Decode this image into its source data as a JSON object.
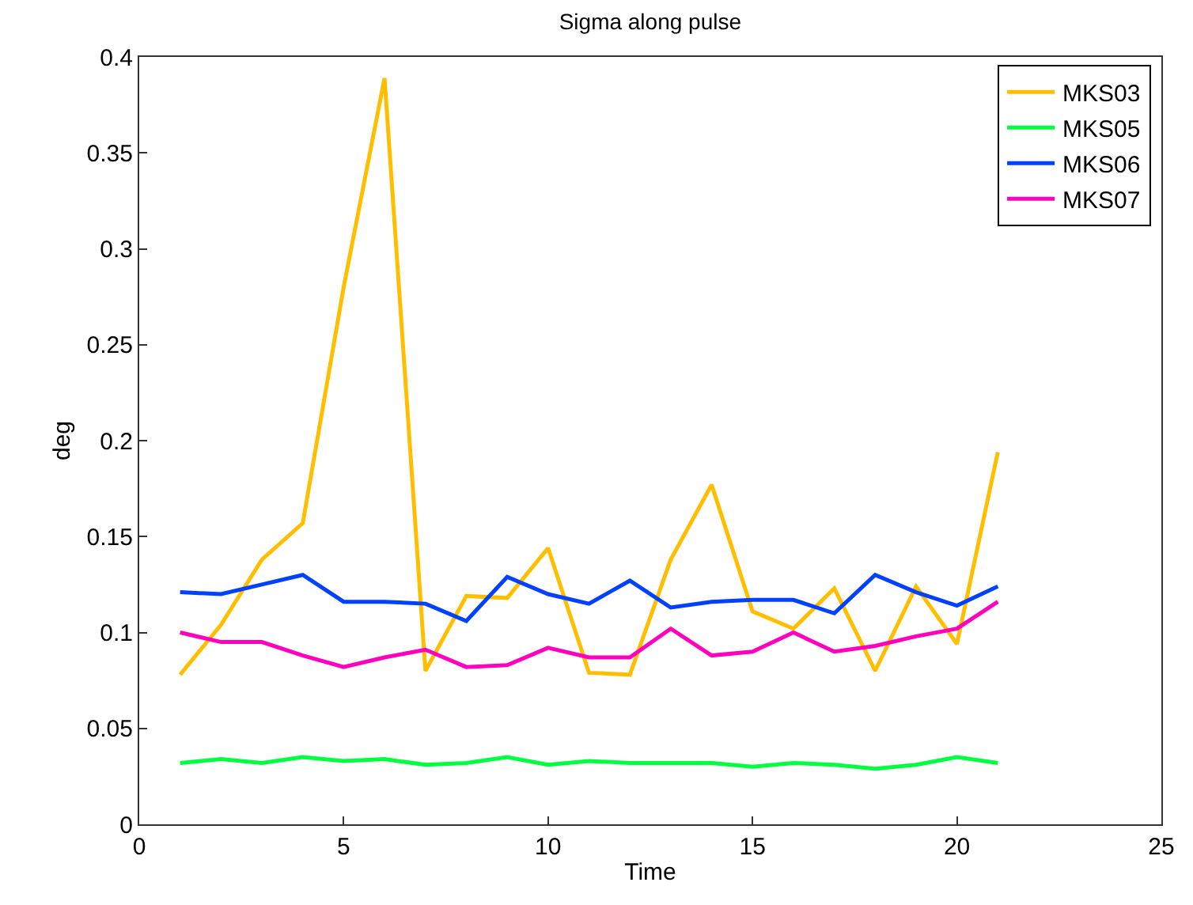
{
  "chart_data": {
    "type": "line",
    "title": "Sigma along pulse",
    "xlabel": "Time",
    "ylabel": "deg",
    "x": [
      1,
      2,
      3,
      4,
      5,
      6,
      7,
      8,
      9,
      10,
      11,
      12,
      13,
      14,
      15,
      16,
      17,
      18,
      19,
      20,
      21
    ],
    "series": [
      {
        "name": "MKS03",
        "color": "#ffbf00",
        "values": [
          0.078,
          0.104,
          0.138,
          0.157,
          0.28,
          0.389,
          0.08,
          0.119,
          0.118,
          0.144,
          0.079,
          0.078,
          0.138,
          0.177,
          0.111,
          0.102,
          0.123,
          0.08,
          0.124,
          0.094,
          0.194
        ]
      },
      {
        "name": "MKS05",
        "color": "#00ff40",
        "values": [
          0.032,
          0.034,
          0.032,
          0.035,
          0.033,
          0.034,
          0.031,
          0.032,
          0.035,
          0.031,
          0.033,
          0.032,
          0.032,
          0.032,
          0.03,
          0.032,
          0.031,
          0.029,
          0.031,
          0.035,
          0.032
        ]
      },
      {
        "name": "MKS06",
        "color": "#0040ff",
        "values": [
          0.121,
          0.12,
          0.125,
          0.13,
          0.116,
          0.116,
          0.115,
          0.106,
          0.129,
          0.12,
          0.115,
          0.127,
          0.113,
          0.116,
          0.117,
          0.117,
          0.11,
          0.13,
          0.121,
          0.114,
          0.124
        ]
      },
      {
        "name": "MKS07",
        "color": "#ff00bf",
        "values": [
          0.1,
          0.095,
          0.095,
          0.088,
          0.082,
          0.087,
          0.091,
          0.082,
          0.083,
          0.092,
          0.087,
          0.087,
          0.102,
          0.088,
          0.09,
          0.1,
          0.09,
          0.093,
          0.098,
          0.102,
          0.116
        ]
      }
    ],
    "xlim": [
      0,
      25
    ],
    "xticks": [
      0,
      5,
      10,
      15,
      20,
      25
    ],
    "ylim": [
      0,
      0.4
    ],
    "yticks": [
      0,
      0.05,
      0.1,
      0.15,
      0.2,
      0.25,
      0.3,
      0.35,
      0.4
    ],
    "grid": false,
    "legend": "top right",
    "marker": "none",
    "line_style": "solid"
  }
}
